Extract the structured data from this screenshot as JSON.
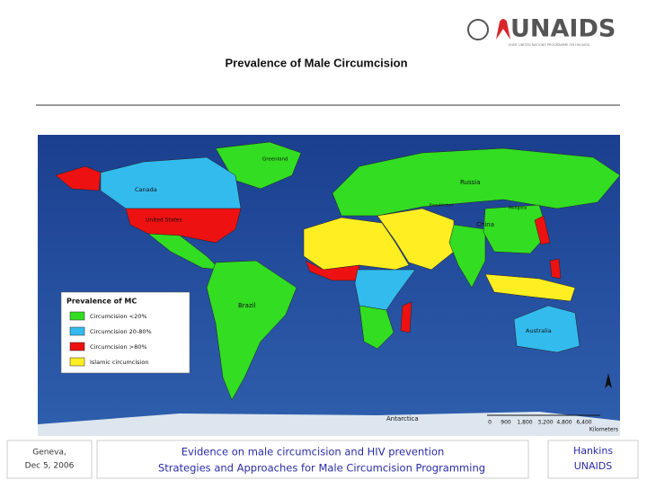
{
  "header": {
    "logo": "UNAIDS",
    "logo_subtitle": "JOINT UNITED NATIONS PROGRAMME ON HIV/AIDS",
    "title": "Prevalence of Male Circumcision"
  },
  "map": {
    "labels": [
      "Greenland",
      "Canada",
      "United States",
      "Russia",
      "Kazakhstan",
      "Mongolia",
      "China",
      "Brazil",
      "Australia",
      "Antarctica"
    ],
    "legend": {
      "title": "Prevalence of MC",
      "items": [
        "Circumcision <20%",
        "Circumcision 20-80%",
        "Circumcision >80%",
        "Islamic circumcision"
      ]
    },
    "scale": {
      "ticks": [
        "0",
        "900",
        "1,800",
        "3,200",
        "4,800",
        "6,400"
      ],
      "unit": "Kilometers"
    }
  },
  "footer": {
    "place": "Geneva,",
    "date": "Dec 5, 2006",
    "line1": "Evidence on male circumcision and HIV prevention",
    "line2": "Strategies and Approaches for Male Circumcision Programming",
    "author": "Hankins",
    "org": "UNAIDS"
  }
}
